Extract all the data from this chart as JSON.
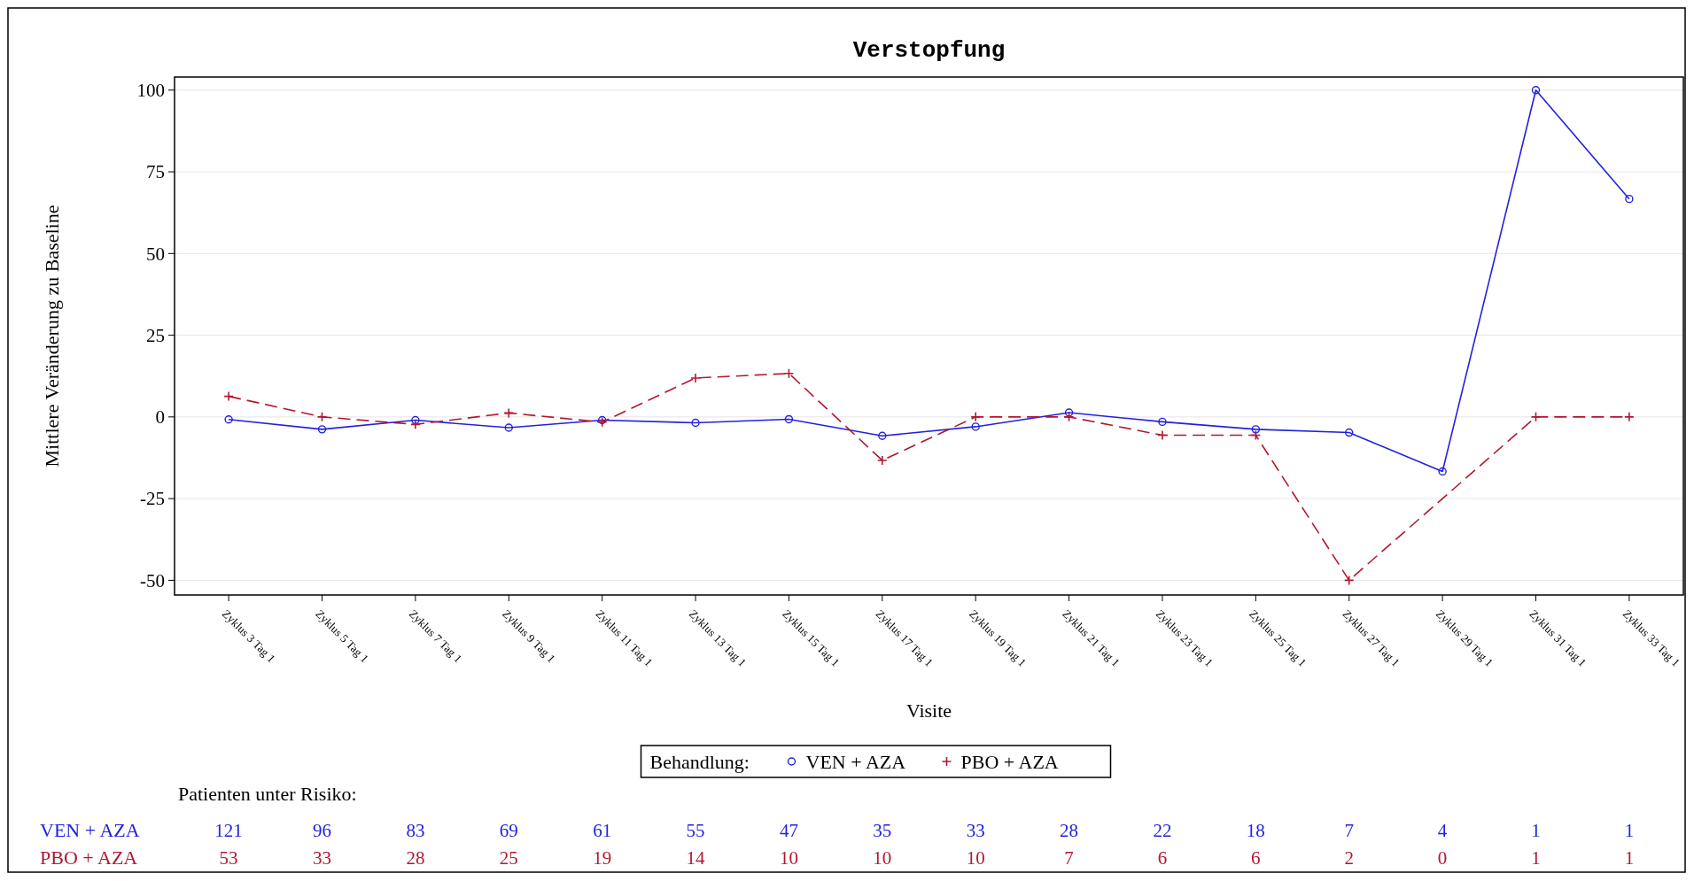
{
  "chart_data": {
    "type": "line",
    "title": "Verstopfung",
    "xlabel": "Visite",
    "ylabel": "Mittlere Veränderung zu Baseline",
    "legend_title": "Behandlung:",
    "categories": [
      "Zyklus 3 Tag 1",
      "Zyklus 5 Tag 1",
      "Zyklus 7 Tag 1",
      "Zyklus 9 Tag 1",
      "Zyklus 11 Tag 1",
      "Zyklus 13 Tag 1",
      "Zyklus 15 Tag 1",
      "Zyklus 17 Tag 1",
      "Zyklus 19 Tag 1",
      "Zyklus 21 Tag 1",
      "Zyklus 23 Tag 1",
      "Zyklus 25 Tag 1",
      "Zyklus 27 Tag 1",
      "Zyklus 29 Tag 1",
      "Zyklus 31 Tag 1",
      "Zyklus 33 Tag 1"
    ],
    "series": [
      {
        "name": "VEN + AZA",
        "color": "#2222dd",
        "marker": "circle",
        "line_style": "solid",
        "values": [
          -0.8,
          -3.8,
          -1,
          -3.3,
          -1,
          -1.8,
          -0.7,
          -5.8,
          -3,
          1.3,
          -1.5,
          -3.8,
          -4.8,
          -16.7,
          100,
          66.7
        ]
      },
      {
        "name": "PBO + AZA",
        "color": "#b01830",
        "marker": "cross",
        "line_style": "dashed",
        "values": [
          6.3,
          0,
          -2.3,
          1.2,
          -1.6,
          11.9,
          13.3,
          -13.3,
          0,
          0,
          -5.6,
          -5.6,
          -50,
          null,
          0,
          0
        ]
      }
    ],
    "ylim": [
      -54.5,
      104
    ],
    "yticks": [
      -50,
      -25,
      0,
      25,
      50,
      75,
      100
    ],
    "grid": "y",
    "legend": "bottom",
    "annotations": [
      "Patienten unter Risiko:",
      "121",
      "96",
      "83",
      "69",
      "61",
      "55",
      "47",
      "35",
      "33",
      "28",
      "22",
      "18",
      "7",
      "4",
      "1",
      "1",
      "53",
      "33",
      "28",
      "25",
      "19",
      "14",
      "10",
      "10",
      "10",
      "7",
      "6",
      "6",
      "2",
      "0",
      "1",
      "1"
    ]
  }
}
